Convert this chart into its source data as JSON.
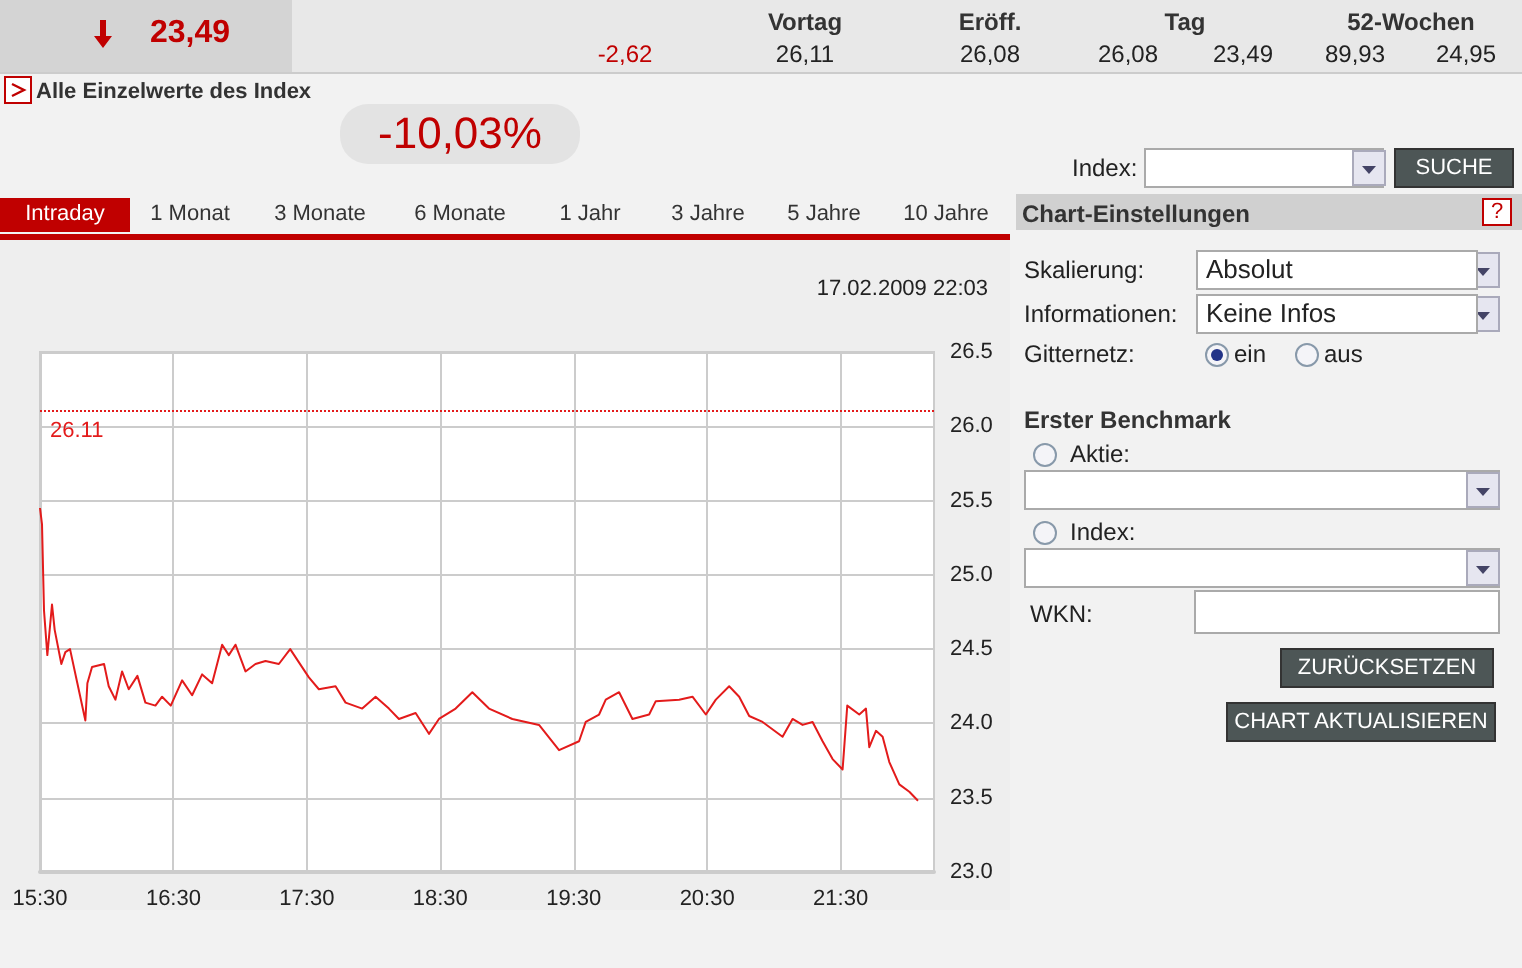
{
  "chart_data": {
    "type": "line",
    "subtitle": "17.02.2009 22:03",
    "x": [
      15.5,
      15.515,
      15.53,
      15.555,
      15.59,
      15.61,
      15.66,
      15.69,
      15.725,
      15.78,
      15.84,
      15.855,
      15.89,
      15.98,
      16.015,
      16.065,
      16.115,
      16.165,
      16.23,
      16.29,
      16.365,
      16.415,
      16.48,
      16.565,
      16.64,
      16.715,
      16.79,
      16.865,
      16.915,
      16.965,
      17.04,
      17.115,
      17.19,
      17.29,
      17.375,
      17.515,
      17.59,
      17.715,
      17.79,
      17.915,
      18.015,
      18.115,
      18.19,
      18.315,
      18.415,
      18.49,
      18.615,
      18.74,
      18.865,
      19.04,
      19.24,
      19.39,
      19.54,
      19.59,
      19.69,
      19.74,
      19.84,
      19.94,
      20.065,
      20.115,
      20.29,
      20.39,
      20.49,
      20.565,
      20.665,
      20.74,
      20.815,
      20.915,
      21.065,
      21.14,
      21.215,
      21.29,
      21.365,
      21.44,
      21.515,
      21.55,
      21.64,
      21.69,
      21.715,
      21.765,
      21.815,
      21.865,
      21.94,
      22.015,
      22.08
    ],
    "series": [
      {
        "color": "#e31b1b",
        "values": [
          25.45,
          25.34,
          24.76,
          24.46,
          24.8,
          24.63,
          24.4,
          24.48,
          24.5,
          24.27,
          24.02,
          24.27,
          24.38,
          24.4,
          24.25,
          24.16,
          24.35,
          24.23,
          24.32,
          24.14,
          24.12,
          24.18,
          24.12,
          24.29,
          24.19,
          24.33,
          24.27,
          24.53,
          24.46,
          24.53,
          24.35,
          24.4,
          24.42,
          24.4,
          24.5,
          24.31,
          24.23,
          24.25,
          24.14,
          24.1,
          24.18,
          24.1,
          24.03,
          24.07,
          23.93,
          24.03,
          24.1,
          24.21,
          24.1,
          24.03,
          23.99,
          23.82,
          23.88,
          24.01,
          24.06,
          24.16,
          24.21,
          24.03,
          24.06,
          24.15,
          24.16,
          24.18,
          24.06,
          24.16,
          24.25,
          24.18,
          24.05,
          24.01,
          23.91,
          24.03,
          23.99,
          24.01,
          23.88,
          23.76,
          23.69,
          24.12,
          24.06,
          24.1,
          23.84,
          23.95,
          23.91,
          23.74,
          23.59,
          23.54,
          23.48
        ]
      }
    ],
    "xlim": [
      15.5,
      22.2
    ],
    "xticks": [
      {
        "value": 15.5,
        "label": "15:30"
      },
      {
        "value": 16.5,
        "label": "16:30"
      },
      {
        "value": 17.5,
        "label": "17:30"
      },
      {
        "value": 18.5,
        "label": "18:30"
      },
      {
        "value": 19.5,
        "label": "19:30"
      },
      {
        "value": 20.5,
        "label": "20:30"
      },
      {
        "value": 21.5,
        "label": "21:30"
      }
    ],
    "ylim": [
      23,
      26.5
    ],
    "yticks": [
      {
        "value": 23,
        "label": "23.0"
      },
      23.5,
      {
        "value": 24,
        "label": "24.0"
      },
      24.5,
      {
        "value": 25,
        "label": "25.0"
      },
      25.5,
      {
        "value": 26,
        "label": "26.0"
      },
      26.5
    ],
    "ref_lines": [
      {
        "axis": "y",
        "value": 26.11,
        "label": "26.11",
        "color": "#e31b1b",
        "line_style": "dotted"
      }
    ],
    "grid": true,
    "marker": "none",
    "line_style": "solid",
    "annotations": [
      "23,49",
      "Vortag",
      "Eröff.",
      "Tag",
      "52-Wochen",
      "-2,62",
      "26,11",
      "26,08",
      "26,08",
      "23,49",
      "89,93",
      "24,95",
      "Alle Einzelwerte des Index",
      "-10,03%",
      "Index:",
      "SUCHE",
      "Intraday",
      "1 Monat",
      "3 Monate",
      "6 Monate",
      "1 Jahr",
      "3 Jahre",
      "5 Jahre",
      "10 Jahre",
      "Chart-Einstellungen",
      "?",
      "Skalierung:",
      "Absolut",
      "Informationen:",
      "Keine Infos",
      "Gitternetz:",
      "ein",
      "aus",
      "Erster Benchmark",
      "Aktie:",
      "Index:",
      "WKN:",
      "ZURÜCKSETZEN",
      "CHART AKTUALISIEREN"
    ]
  }
}
